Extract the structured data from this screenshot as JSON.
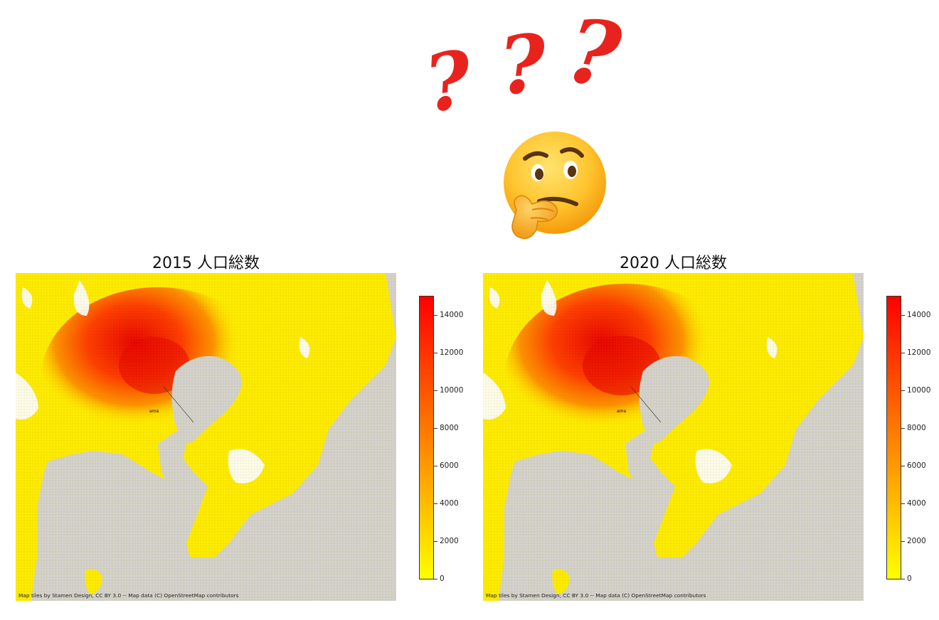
{
  "question_marks": [
    "?",
    "?",
    "?"
  ],
  "thinking_emoji": "thinking-face",
  "maps": [
    {
      "title": "2015 人口総数",
      "attribution": "Map tiles by Stamen Design, CC BY 3.0 -- Map data (C) OpenStreetMap contributors",
      "colorbar": {
        "min": 0,
        "max": 15000,
        "ticks": [
          "0",
          "2000",
          "4000",
          "6000",
          "8000",
          "10000",
          "12000",
          "14000"
        ],
        "colormap": [
          "#ffff00",
          "#ff0000"
        ]
      },
      "place_labels": [
        "ama"
      ]
    },
    {
      "title": "2020 人口総数",
      "attribution": "Map tiles by Stamen Design, CC BY 3.0 -- Map data (C) OpenStreetMap contributors",
      "colorbar": {
        "min": 0,
        "max": 15000,
        "ticks": [
          "0",
          "2000",
          "4000",
          "6000",
          "8000",
          "10000",
          "12000",
          "14000"
        ],
        "colormap": [
          "#ffff00",
          "#ff0000"
        ]
      },
      "place_labels": [
        "ama"
      ]
    }
  ],
  "colors": {
    "sea": "#d3d3d3",
    "low": "#ffff00",
    "high": "#ff0000",
    "mid": "#ff7700",
    "question_mark": "#e8231d"
  }
}
